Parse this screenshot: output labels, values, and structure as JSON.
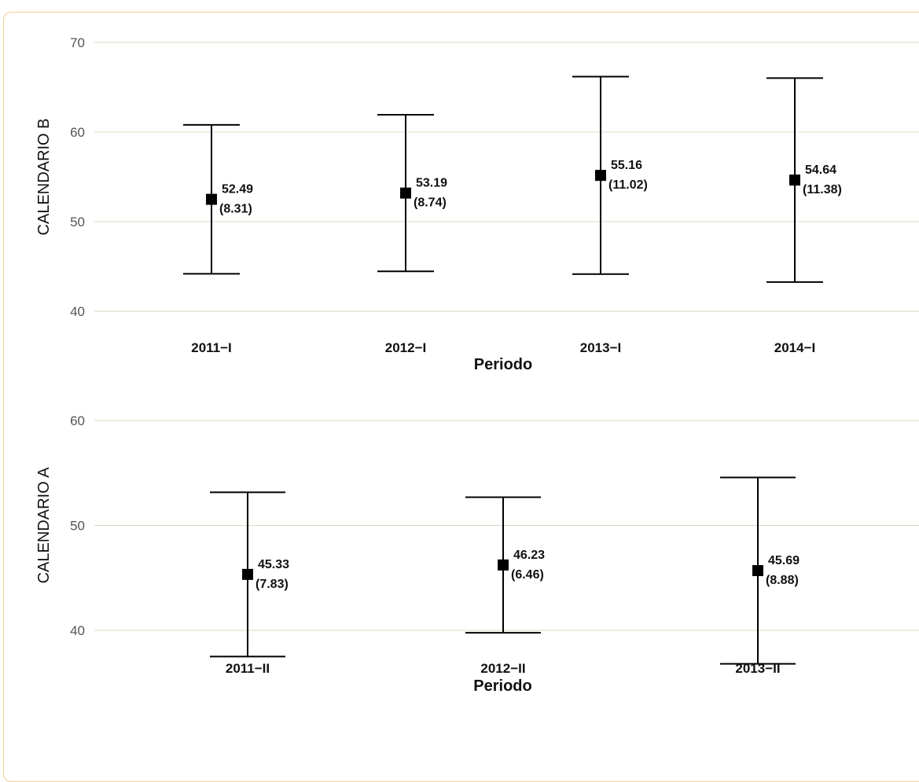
{
  "chart_data": [
    {
      "type": "errorbar",
      "ylabel": "CALENDARIO B",
      "xlabel": "Periodo",
      "ylim": [
        40,
        70
      ],
      "yticks": [
        40,
        50,
        60,
        70
      ],
      "grid": true,
      "categories": [
        "2011−I",
        "2012−I",
        "2013−I",
        "2014−I"
      ],
      "mean": [
        52.49,
        53.19,
        55.16,
        54.64
      ],
      "sd": [
        8.31,
        8.74,
        11.02,
        11.38
      ],
      "mean_labels": [
        "52.49",
        "53.19",
        "55.16",
        "54.64"
      ],
      "sd_labels": [
        "(8.31)",
        "(8.74)",
        "(11.02)",
        "(11.38)"
      ]
    },
    {
      "type": "errorbar",
      "ylabel": "CALENDARIO A",
      "xlabel": "Periodo",
      "ylim": [
        40,
        60
      ],
      "yticks": [
        40,
        50,
        60
      ],
      "grid": true,
      "categories": [
        "2011−II",
        "2012−II",
        "2013−II"
      ],
      "mean": [
        45.33,
        46.23,
        45.69
      ],
      "sd": [
        7.83,
        6.46,
        8.88
      ],
      "mean_labels": [
        "45.33",
        "46.23",
        "45.69"
      ],
      "sd_labels": [
        "(7.83)",
        "(6.46)",
        "(8.88)"
      ]
    }
  ],
  "colors": {
    "grid": "#d6dcc4",
    "frame": "#f5cc8e",
    "marks": "#000000"
  }
}
